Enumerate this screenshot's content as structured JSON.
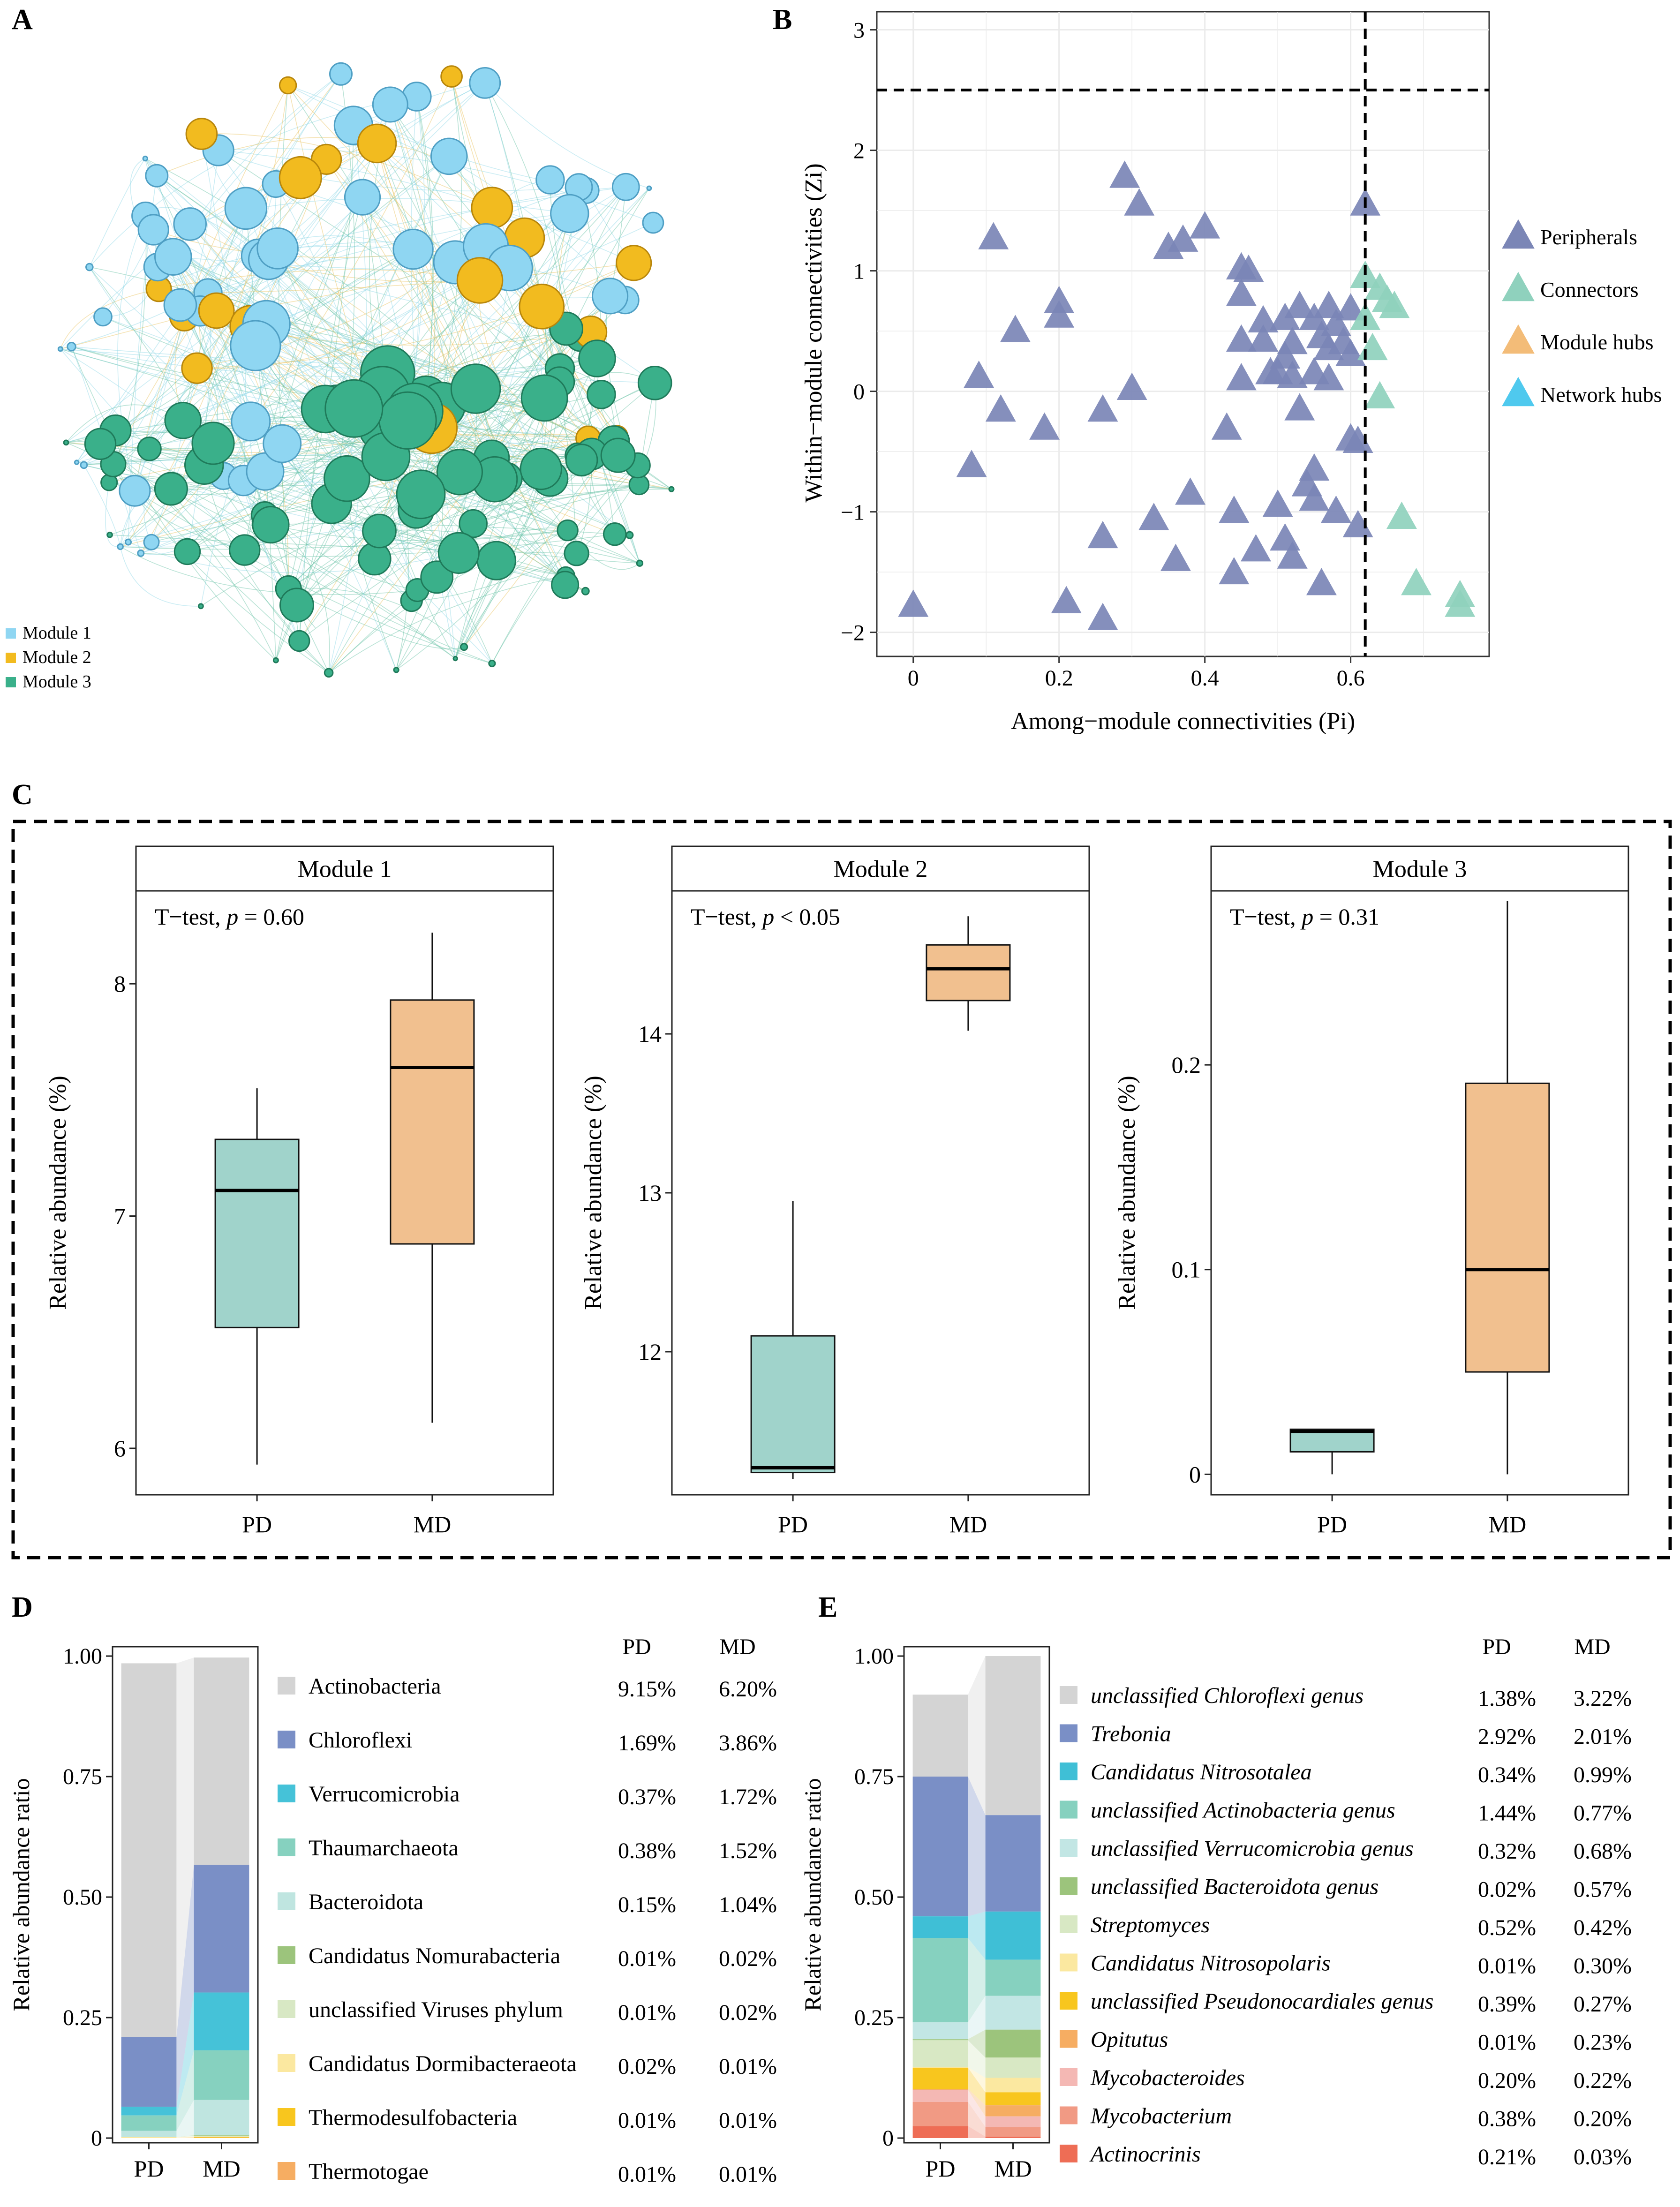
{
  "panel_labels": [
    "A",
    "B",
    "C",
    "D",
    "E"
  ],
  "colors": {
    "module1": "#8fd6f2",
    "module1_stroke": "#4f9fc4",
    "module2": "#f2bb1f",
    "module2_stroke": "#b8860b",
    "module3": "#3ab08a",
    "module3_stroke": "#1f7a5a",
    "peripheral": "#7b86b6",
    "connector": "#8fd1bd",
    "module_hub": "#f3bc78",
    "network_hub": "#4fc9ee",
    "box_pd": "#a0d3cb",
    "box_md": "#f1c08f"
  },
  "chart_data": [
    {
      "id": "A",
      "type": "network",
      "legend": [
        "Module 1",
        "Module 2",
        "Module 3"
      ],
      "node_counts": {
        "Module 1": 54,
        "Module 2": 20,
        "Module 3": 80
      }
    },
    {
      "id": "B",
      "type": "scatter",
      "xlabel": "Among−module connectivities (Pi)",
      "ylabel": "Within−module connectivities (Zi)",
      "xlim": [
        -0.05,
        0.79
      ],
      "ylim": [
        -2.2,
        3.15
      ],
      "xticks": [
        0,
        0.2,
        0.4,
        0.6
      ],
      "yticks": [
        -2,
        -1,
        0,
        1,
        2,
        3
      ],
      "xtick_labels": [
        "0",
        "0.2",
        "0.4",
        "0.6"
      ],
      "ytick_labels": [
        "−2",
        "−1",
        "0",
        "1",
        "2",
        "3"
      ],
      "thresholds": {
        "x": 0.62,
        "y": 2.5
      },
      "legend": [
        "Peripherals",
        "Connectors",
        "Module hubs",
        "Network hubs"
      ],
      "series": [
        {
          "name": "Peripherals",
          "points": [
            [
              0.0,
              -1.78
            ],
            [
              0.08,
              -0.62
            ],
            [
              0.09,
              0.12
            ],
            [
              0.11,
              1.27
            ],
            [
              0.12,
              -0.16
            ],
            [
              0.14,
              0.5
            ],
            [
              0.18,
              -0.31
            ],
            [
              0.2,
              0.74
            ],
            [
              0.2,
              0.62
            ],
            [
              0.21,
              -1.75
            ],
            [
              0.26,
              -0.16
            ],
            [
              0.26,
              -1.21
            ],
            [
              0.26,
              -1.89
            ],
            [
              0.29,
              1.78
            ],
            [
              0.3,
              0.02
            ],
            [
              0.31,
              1.55
            ],
            [
              0.33,
              -1.06
            ],
            [
              0.35,
              1.19
            ],
            [
              0.36,
              -1.4
            ],
            [
              0.37,
              1.25
            ],
            [
              0.38,
              -0.85
            ],
            [
              0.4,
              1.36
            ],
            [
              0.43,
              -0.31
            ],
            [
              0.44,
              -1.51
            ],
            [
              0.44,
              -1.0
            ],
            [
              0.45,
              1.02
            ],
            [
              0.45,
              0.8
            ],
            [
              0.45,
              0.1
            ],
            [
              0.45,
              0.42
            ],
            [
              0.46,
              1.0
            ],
            [
              0.47,
              -1.32
            ],
            [
              0.48,
              0.42
            ],
            [
              0.48,
              0.58
            ],
            [
              0.49,
              0.15
            ],
            [
              0.5,
              -0.95
            ],
            [
              0.5,
              0.15
            ],
            [
              0.51,
              0.28
            ],
            [
              0.51,
              -1.23
            ],
            [
              0.51,
              0.6
            ],
            [
              0.52,
              0.4
            ],
            [
              0.52,
              -1.38
            ],
            [
              0.52,
              0.12
            ],
            [
              0.53,
              -0.15
            ],
            [
              0.53,
              0.7
            ],
            [
              0.54,
              -0.78
            ],
            [
              0.55,
              0.15
            ],
            [
              0.55,
              0.6
            ],
            [
              0.55,
              -0.65
            ],
            [
              0.55,
              -0.9
            ],
            [
              0.56,
              -1.6
            ],
            [
              0.56,
              0.45
            ],
            [
              0.57,
              0.35
            ],
            [
              0.57,
              0.7
            ],
            [
              0.57,
              0.1
            ],
            [
              0.58,
              -1.0
            ],
            [
              0.58,
              0.55
            ],
            [
              0.59,
              0.4
            ],
            [
              0.6,
              0.3
            ],
            [
              0.6,
              0.68
            ],
            [
              0.6,
              -0.4
            ],
            [
              0.61,
              -1.12
            ],
            [
              0.61,
              -0.42
            ],
            [
              0.62,
              1.55
            ]
          ]
        },
        {
          "name": "Connectors",
          "points": [
            [
              0.62,
              0.95
            ],
            [
              0.62,
              0.6
            ],
            [
              0.63,
              0.35
            ],
            [
              0.64,
              -0.05
            ],
            [
              0.64,
              0.85
            ],
            [
              0.65,
              0.75
            ],
            [
              0.66,
              0.7
            ],
            [
              0.67,
              -1.05
            ],
            [
              0.69,
              -1.6
            ],
            [
              0.75,
              -1.7
            ],
            [
              0.75,
              -1.78
            ]
          ]
        },
        {
          "name": "Module hubs",
          "points": []
        },
        {
          "name": "Network hubs",
          "points": []
        }
      ]
    },
    {
      "id": "C1",
      "type": "box",
      "title": "Module 1",
      "test_label": "T−test, ",
      "test_p": "p",
      "test_value": " = 0.60",
      "ylabel": "Relative abundance (%)",
      "ylim": [
        5.8,
        8.4
      ],
      "yticks": [
        6,
        7,
        8
      ],
      "ytick_labels": [
        "6",
        "7",
        "8"
      ],
      "categories": [
        "PD",
        "MD"
      ],
      "boxes": [
        {
          "name": "PD",
          "min": 5.93,
          "q1": 6.52,
          "median": 7.11,
          "q3": 7.33,
          "max": 7.55
        },
        {
          "name": "MD",
          "min": 6.11,
          "q1": 6.88,
          "median": 7.64,
          "q3": 7.93,
          "max": 8.22
        }
      ]
    },
    {
      "id": "C2",
      "type": "box",
      "title": "Module 2",
      "test_label": "T−test, ",
      "test_p": "p",
      "test_value": " < 0.05",
      "ylabel": "Relative abundance (%)",
      "ylim": [
        11.1,
        14.9
      ],
      "yticks": [
        12,
        13,
        14
      ],
      "ytick_labels": [
        "12",
        "13",
        "14"
      ],
      "categories": [
        "PD",
        "MD"
      ],
      "boxes": [
        {
          "name": "PD",
          "min": 11.2,
          "q1": 11.24,
          "median": 11.27,
          "q3": 12.1,
          "max": 12.95
        },
        {
          "name": "MD",
          "min": 14.02,
          "q1": 14.21,
          "median": 14.41,
          "q3": 14.56,
          "max": 14.74
        }
      ]
    },
    {
      "id": "C3",
      "type": "box",
      "title": "Module 3",
      "test_label": "T−test, ",
      "test_p": "p",
      "test_value": " = 0.31",
      "ylabel": "Relative abundance (%)",
      "ylim": [
        -0.01,
        0.285
      ],
      "yticks": [
        0,
        0.1,
        0.2
      ],
      "ytick_labels": [
        "0",
        "0.1",
        "0.2"
      ],
      "categories": [
        "PD",
        "MD"
      ],
      "boxes": [
        {
          "name": "PD",
          "min": 0.0,
          "q1": 0.011,
          "median": 0.021,
          "q3": 0.022,
          "max": 0.022
        },
        {
          "name": "MD",
          "min": 0.0,
          "q1": 0.05,
          "median": 0.1,
          "q3": 0.191,
          "max": 0.28
        }
      ]
    },
    {
      "id": "D",
      "type": "stacked_bar",
      "ylabel": "Relative abundance ratio",
      "yticks": [
        0,
        0.25,
        0.5,
        0.75,
        1.0
      ],
      "ytick_labels": [
        "0",
        "0.25",
        "0.50",
        "0.75",
        "1.00"
      ],
      "categories": [
        "PD",
        "MD"
      ],
      "header": [
        "PD",
        "MD"
      ],
      "series": [
        {
          "name": "Actinobacteria",
          "color": "#d4d4d4",
          "italic": false,
          "labels": [
            "9.15%",
            "6.20%"
          ]
        },
        {
          "name": "Chloroflexi",
          "color": "#7a8fc6",
          "italic": false,
          "labels": [
            "1.69%",
            "3.86%"
          ]
        },
        {
          "name": "Verrucomicrobia",
          "color": "#45c2d8",
          "italic": false,
          "labels": [
            "0.37%",
            "1.72%"
          ]
        },
        {
          "name": "Thaumarchaeota",
          "color": "#86d1bf",
          "italic": false,
          "labels": [
            "0.38%",
            "1.52%"
          ]
        },
        {
          "name": "Bacteroidota",
          "color": "#bfe5e0",
          "italic": false,
          "labels": [
            "0.15%",
            "1.04%"
          ]
        },
        {
          "name": "Candidatus Nomurabacteria",
          "color": "#9cc47c",
          "italic": false,
          "labels": [
            "0.01%",
            "0.02%"
          ]
        },
        {
          "name": "unclassified Viruses phylum",
          "color": "#d8e8c4",
          "italic": false,
          "labels": [
            "0.01%",
            "0.02%"
          ]
        },
        {
          "name": "Candidatus Dormibacteraeota",
          "color": "#fbe8a0",
          "italic": false,
          "labels": [
            "0.02%",
            "0.01%"
          ]
        },
        {
          "name": "Thermodesulfobacteria",
          "color": "#f8c61e",
          "italic": false,
          "labels": [
            "0.01%",
            "0.01%"
          ]
        },
        {
          "name": "Thermotogae",
          "color": "#f6ad62",
          "italic": false,
          "labels": [
            "0.01%",
            "0.01%"
          ]
        }
      ],
      "stack_values": {
        "PD": [
          0.775,
          0.145,
          0.018,
          0.032,
          0.013,
          0.0,
          0.0,
          0.002,
          0.0,
          0.0
        ],
        "MD": [
          0.43,
          0.265,
          0.12,
          0.103,
          0.073,
          0.001,
          0.002,
          0.001,
          0.001,
          0.001
        ]
      }
    },
    {
      "id": "E",
      "type": "stacked_bar",
      "ylabel": "Relative abundance ratio",
      "yticks": [
        0,
        0.25,
        0.5,
        0.75,
        1.0
      ],
      "ytick_labels": [
        "0",
        "0.25",
        "0.50",
        "0.75",
        "1.00"
      ],
      "categories": [
        "PD",
        "MD"
      ],
      "header": [
        "PD",
        "MD"
      ],
      "series": [
        {
          "name": "unclassified Chloroflexi genus",
          "color": "#d4d4d4",
          "italic": true,
          "labels": [
            "1.38%",
            "3.22%"
          ]
        },
        {
          "name": "Trebonia",
          "color": "#7a8fc6",
          "italic": true,
          "labels": [
            "2.92%",
            "2.01%"
          ]
        },
        {
          "name": "Candidatus Nitrosotalea",
          "color": "#3fbfd6",
          "italic": true,
          "labels": [
            "0.34%",
            "0.99%"
          ]
        },
        {
          "name": "unclassified Actinobacteria genus",
          "color": "#86d1bf",
          "italic": true,
          "labels": [
            "1.44%",
            "0.77%"
          ]
        },
        {
          "name": "unclassified Verrucomicrobia genus",
          "color": "#c2e6e4",
          "italic": true,
          "labels": [
            "0.32%",
            "0.68%"
          ]
        },
        {
          "name": "unclassified Bacteroidota genus",
          "color": "#9cc47c",
          "italic": true,
          "labels": [
            "0.02%",
            "0.57%"
          ]
        },
        {
          "name": "Streptomyces",
          "color": "#d8e8c4",
          "italic": true,
          "labels": [
            "0.52%",
            "0.42%"
          ]
        },
        {
          "name": "Candidatus Nitrosopolaris",
          "color": "#fbe8a0",
          "italic": true,
          "labels": [
            "0.01%",
            "0.30%"
          ]
        },
        {
          "name": "unclassified Pseudonocardiales genus",
          "color": "#f8c61e",
          "italic": true,
          "labels": [
            "0.39%",
            "0.27%"
          ]
        },
        {
          "name": "Opitutus",
          "color": "#f6ad62",
          "italic": true,
          "labels": [
            "0.01%",
            "0.23%"
          ]
        },
        {
          "name": "Mycobacteroides",
          "color": "#f4b8b4",
          "italic": true,
          "labels": [
            "0.20%",
            "0.22%"
          ]
        },
        {
          "name": "Mycobacterium",
          "color": "#f19a84",
          "italic": true,
          "labels": [
            "0.38%",
            "0.20%"
          ]
        },
        {
          "name": "Actinocrinis",
          "color": "#ee6d55",
          "italic": true,
          "labels": [
            "0.21%",
            "0.03%"
          ]
        }
      ],
      "stack_values": {
        "PD": [
          0.17,
          0.29,
          0.045,
          0.175,
          0.035,
          0.002,
          0.056,
          0.001,
          0.044,
          0.002,
          0.025,
          0.05,
          0.025
        ],
        "MD": [
          0.33,
          0.2,
          0.1,
          0.075,
          0.07,
          0.058,
          0.042,
          0.03,
          0.027,
          0.023,
          0.022,
          0.02,
          0.003
        ]
      }
    }
  ],
  "box_panel": {
    "x_labels": [
      "PD",
      "MD"
    ]
  }
}
